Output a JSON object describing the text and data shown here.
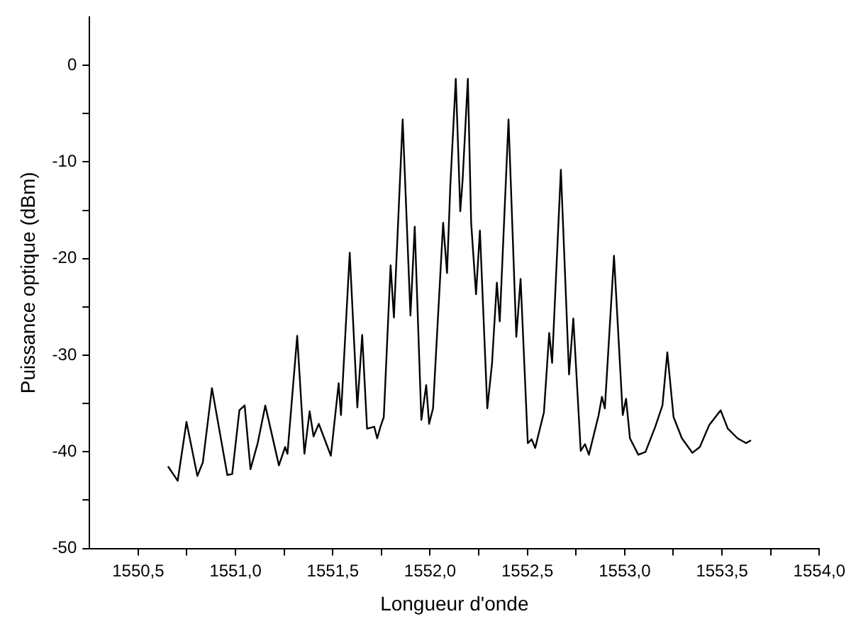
{
  "chart_data": {
    "type": "line",
    "xlabel": "Longueur d'onde",
    "ylabel": "Puissance optique (dBm)",
    "grid": false,
    "legend": false,
    "marker": "none",
    "line_style": "solid",
    "xlim": [
      1550.25,
      1554.0
    ],
    "ylim": [
      -50,
      5
    ],
    "xticks": [
      {
        "value": 1550.5,
        "label": "1550,5"
      },
      {
        "value": 1550.75,
        "label": null
      },
      {
        "value": 1551.0,
        "label": "1551,0"
      },
      {
        "value": 1551.25,
        "label": null
      },
      {
        "value": 1551.5,
        "label": "1551,5"
      },
      {
        "value": 1551.75,
        "label": null
      },
      {
        "value": 1552.0,
        "label": "1552,0"
      },
      {
        "value": 1552.25,
        "label": null
      },
      {
        "value": 1552.5,
        "label": "1552,5"
      },
      {
        "value": 1552.75,
        "label": null
      },
      {
        "value": 1553.0,
        "label": "1553,0"
      },
      {
        "value": 1553.25,
        "label": null
      },
      {
        "value": 1553.5,
        "label": "1553,5"
      },
      {
        "value": 1553.75,
        "label": null
      },
      {
        "value": 1554.0,
        "label": "1554,0"
      }
    ],
    "yticks": [
      -50,
      {
        "value": -45,
        "label": null
      },
      -40,
      {
        "value": -35,
        "label": null
      },
      -30,
      {
        "value": -25,
        "label": null
      },
      -20,
      {
        "value": -15,
        "label": null
      },
      -10,
      {
        "value": -5,
        "label": null
      },
      0
    ],
    "series": [
      {
        "color": "#000000",
        "x": [
          1550.653,
          1550.703,
          1550.748,
          1550.804,
          1550.832,
          1550.879,
          1550.958,
          1550.983,
          1551.02,
          1551.047,
          1551.077,
          1551.114,
          1551.153,
          1551.223,
          1551.255,
          1551.267,
          1551.317,
          1551.354,
          1551.381,
          1551.401,
          1551.428,
          1551.49,
          1551.53,
          1551.542,
          1551.587,
          1551.626,
          1551.651,
          1551.676,
          1551.713,
          1551.728,
          1551.745,
          1551.762,
          1551.797,
          1551.814,
          1551.859,
          1551.899,
          1551.921,
          1551.955,
          1551.98,
          1551.995,
          1552.015,
          1552.067,
          1552.087,
          1552.104,
          1552.132,
          1552.155,
          1552.167,
          1552.194,
          1552.211,
          1552.236,
          1552.256,
          1552.294,
          1552.318,
          1552.343,
          1552.358,
          1552.403,
          1552.443,
          1552.465,
          1552.502,
          1552.522,
          1552.54,
          1552.585,
          1552.612,
          1552.627,
          1552.672,
          1552.714,
          1552.736,
          1552.774,
          1552.796,
          1552.816,
          1552.866,
          1552.883,
          1552.898,
          1552.945,
          1552.99,
          1553.007,
          1553.027,
          1553.07,
          1553.107,
          1553.157,
          1553.194,
          1553.219,
          1553.251,
          1553.294,
          1553.348,
          1553.386,
          1553.435,
          1553.493,
          1553.53,
          1553.58,
          1553.624,
          1553.649
        ],
        "values": [
          -41.5,
          -43.0,
          -36.9,
          -42.5,
          -41.1,
          -33.4,
          -42.4,
          -42.3,
          -35.7,
          -35.2,
          -41.8,
          -39.1,
          -35.2,
          -41.4,
          -39.5,
          -40.2,
          -28.0,
          -40.2,
          -35.8,
          -38.4,
          -37.1,
          -40.4,
          -32.9,
          -36.2,
          -19.4,
          -35.4,
          -27.9,
          -37.6,
          -37.4,
          -38.6,
          -37.4,
          -36.4,
          -20.7,
          -26.1,
          -5.6,
          -25.9,
          -16.7,
          -36.7,
          -33.1,
          -37.1,
          -35.5,
          -16.3,
          -21.5,
          -12.4,
          -1.4,
          -15.1,
          -11.9,
          -1.4,
          -16.3,
          -23.7,
          -17.1,
          -35.5,
          -30.9,
          -22.5,
          -26.5,
          -5.6,
          -28.1,
          -22.1,
          -39.1,
          -38.7,
          -39.6,
          -35.9,
          -27.7,
          -30.8,
          -10.8,
          -32.0,
          -26.2,
          -39.9,
          -39.2,
          -40.3,
          -36.2,
          -34.3,
          -35.5,
          -19.7,
          -36.2,
          -34.5,
          -38.6,
          -40.3,
          -40.0,
          -37.4,
          -35.2,
          -29.7,
          -36.4,
          -38.6,
          -40.1,
          -39.5,
          -37.2,
          -35.7,
          -37.6,
          -38.6,
          -39.1,
          -38.8
        ]
      }
    ]
  }
}
